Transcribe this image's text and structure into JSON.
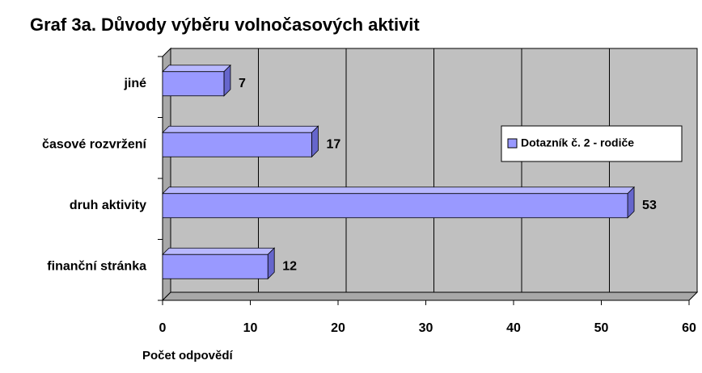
{
  "chart_data": {
    "type": "bar",
    "orientation": "horizontal",
    "title": "Graf 3a. Důvody výběru volnočasových aktivit",
    "x_label": "Počet odpovědí",
    "categories": [
      "jiné",
      "časové rozvržení",
      "druh aktivity",
      "finanční stránka"
    ],
    "series": [
      {
        "name": "Dotazník č. 2 - rodiče",
        "color": "#9999ff",
        "values": [
          7,
          17,
          53,
          12
        ]
      }
    ],
    "xlim": [
      0,
      60
    ],
    "xticks": [
      0,
      10,
      20,
      30,
      40,
      50,
      60
    ],
    "grid": true,
    "legend": "right"
  }
}
